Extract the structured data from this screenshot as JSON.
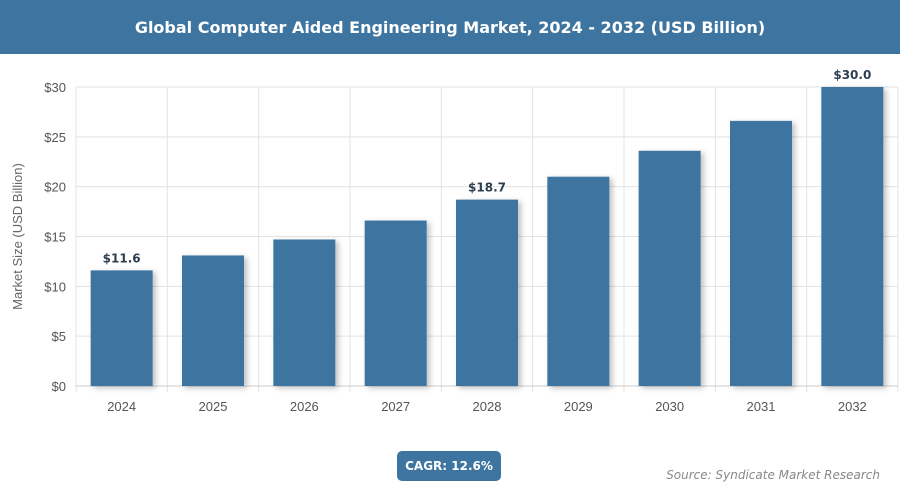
{
  "chart_data": {
    "type": "bar",
    "title": "Global Computer Aided Engineering Market, 2024 - 2032 (USD Billion)",
    "ylabel": "Market Size (USD Billion)",
    "xlabel": "",
    "categories": [
      "2024",
      "2025",
      "2026",
      "2027",
      "2028",
      "2029",
      "2030",
      "2031",
      "2032"
    ],
    "values": [
      11.6,
      13.1,
      14.7,
      16.6,
      18.7,
      21.0,
      23.6,
      26.6,
      30.0
    ],
    "data_labels": {
      "0": "$11.6",
      "4": "$18.7",
      "8": "$30.0"
    },
    "ylim": [
      0,
      30
    ],
    "yticks": [
      0,
      5,
      10,
      15,
      20,
      25,
      30
    ],
    "ytick_labels": [
      "$0",
      "$5",
      "$10",
      "$15",
      "$20",
      "$25",
      "$30"
    ],
    "grid": true,
    "bar_color": "#3d75a0"
  },
  "cagr": "CAGR: 12.6%",
  "source": "Source: Syndicate Market Research"
}
